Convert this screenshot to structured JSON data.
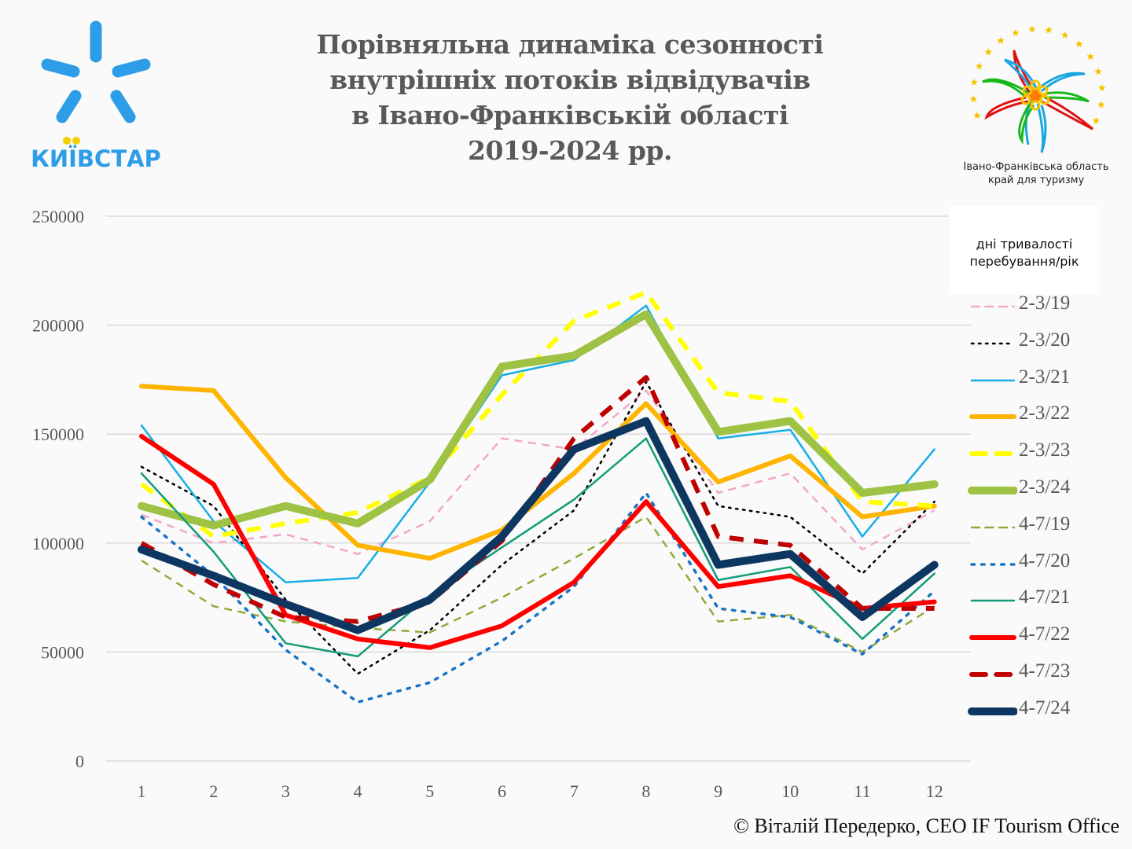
{
  "header": {
    "title_lines": [
      "Порівняльна динаміка сезонності",
      "внутрішніх потоків відвідувачів",
      "в Івано-Франківській області",
      "2019-2024 рр."
    ],
    "left_logo_text": "КИЇВСТАР",
    "right_logo_text_lines": [
      "Івано-Франківська область",
      "край для туризму"
    ]
  },
  "legend": {
    "title_lines": [
      "дні тривалості",
      "перебування/рік"
    ]
  },
  "footer": {
    "credit": "© Віталій Передерко, CEO IF Tourism Office"
  },
  "colors": {
    "kyivstar_blue": "#2d9de8",
    "kyivstar_yellow": "#f5d000",
    "title_gray": "#595959",
    "grid": "#d9d9d9"
  },
  "chart_data": {
    "type": "line",
    "title": "Порівняльна динаміка сезонності внутрішніх потоків відвідувачів в Івано-Франківській області 2019-2024 рр.",
    "xlabel": "",
    "ylabel": "",
    "x": [
      1,
      2,
      3,
      4,
      5,
      6,
      7,
      8,
      9,
      10,
      11,
      12
    ],
    "categories": [
      "1",
      "2",
      "3",
      "4",
      "5",
      "6",
      "7",
      "8",
      "9",
      "10",
      "11",
      "12"
    ],
    "ylim": [
      0,
      250000
    ],
    "yticks": [
      0,
      50000,
      100000,
      150000,
      200000,
      250000
    ],
    "ytick_labels": [
      "0",
      "50000",
      "100000",
      "150000",
      "200000",
      "250000"
    ],
    "grid": true,
    "legend_position": "right",
    "series": [
      {
        "name": "2-3/19",
        "color": "#f4a6c8",
        "style": "dashed",
        "weight": "thin",
        "values": [
          113000,
          100000,
          104000,
          95000,
          110000,
          148000,
          143000,
          170000,
          123000,
          132000,
          97000,
          115000
        ]
      },
      {
        "name": "2-3/20",
        "color": "#000000",
        "style": "dotted",
        "weight": "thin",
        "values": [
          135000,
          117000,
          74000,
          40000,
          60000,
          90000,
          115000,
          174000,
          117000,
          112000,
          86000,
          119000
        ]
      },
      {
        "name": "2-3/21",
        "color": "#16aee8",
        "style": "solid",
        "weight": "thin",
        "values": [
          154000,
          110000,
          82000,
          84000,
          128000,
          177000,
          184000,
          209000,
          148000,
          152000,
          103000,
          143000
        ]
      },
      {
        "name": "2-3/22",
        "color": "#ffb400",
        "style": "solid",
        "weight": "thick",
        "values": [
          172000,
          170000,
          130000,
          99000,
          93000,
          106000,
          132000,
          164000,
          128000,
          140000,
          112000,
          117000
        ]
      },
      {
        "name": "2-3/23",
        "color": "#ffff00",
        "style": "dashed",
        "weight": "thick",
        "values": [
          127000,
          103000,
          109000,
          114000,
          130000,
          168000,
          202000,
          215000,
          169000,
          165000,
          119000,
          117000
        ]
      },
      {
        "name": "2-3/24",
        "color": "#9dc244",
        "style": "solid",
        "weight": "xthick",
        "values": [
          117000,
          108000,
          117000,
          109000,
          129000,
          181000,
          186000,
          205000,
          151000,
          156000,
          123000,
          127000
        ]
      },
      {
        "name": "4-7/19",
        "color": "#8faa3c",
        "style": "dashed",
        "weight": "thin",
        "values": [
          92000,
          71000,
          64000,
          61000,
          59000,
          75000,
          93000,
          112000,
          64000,
          67000,
          50000,
          71000
        ]
      },
      {
        "name": "4-7/20",
        "color": "#1a74c4",
        "style": "dotted",
        "weight": "medium",
        "values": [
          112000,
          85000,
          51000,
          27000,
          36000,
          55000,
          80000,
          123000,
          70000,
          66000,
          49000,
          78000
        ]
      },
      {
        "name": "4-7/21",
        "color": "#129c78",
        "style": "solid",
        "weight": "thin",
        "values": [
          132000,
          96000,
          54000,
          48000,
          76000,
          98000,
          120000,
          148000,
          83000,
          89000,
          56000,
          86000
        ]
      },
      {
        "name": "4-7/22",
        "color": "#ff0000",
        "style": "solid",
        "weight": "thick",
        "values": [
          149000,
          127000,
          67000,
          56000,
          52000,
          62000,
          82000,
          119000,
          80000,
          85000,
          70000,
          73000
        ]
      },
      {
        "name": "4-7/23",
        "color": "#c00000",
        "style": "dashed",
        "weight": "thick",
        "values": [
          100000,
          81000,
          66000,
          64000,
          73000,
          101000,
          148000,
          176000,
          103000,
          99000,
          70000,
          70000
        ]
      },
      {
        "name": "4-7/24",
        "color": "#0d3660",
        "style": "solid",
        "weight": "xthick",
        "values": [
          97000,
          85000,
          72000,
          60000,
          74000,
          103000,
          143000,
          156000,
          90000,
          95000,
          66000,
          90000
        ]
      }
    ]
  }
}
